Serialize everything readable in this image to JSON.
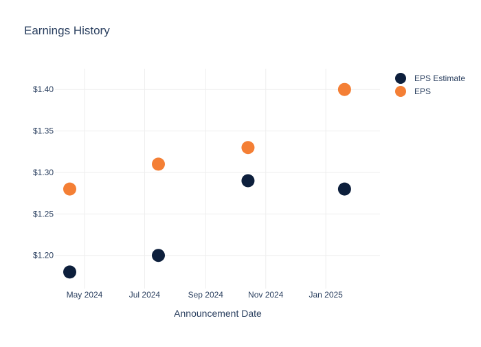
{
  "chart_data": {
    "type": "scatter",
    "title": "Earnings History",
    "xlabel": "Announcement Date",
    "ylabel": "",
    "x_tick_labels": [
      {
        "date": "2024-05-01",
        "label": "May 2024"
      },
      {
        "date": "2024-07-01",
        "label": "Jul 2024"
      },
      {
        "date": "2024-09-01",
        "label": "Sep 2024"
      },
      {
        "date": "2024-11-01",
        "label": "Nov 2024"
      },
      {
        "date": "2025-01-01",
        "label": "Jan 2025"
      }
    ],
    "y_ticks": [
      1.2,
      1.25,
      1.3,
      1.35,
      1.4
    ],
    "y_tick_labels": [
      "$1.20",
      "$1.25",
      "$1.30",
      "$1.35",
      "$1.40"
    ],
    "xlim": [
      "2024-04-01",
      "2025-02-25"
    ],
    "ylim": [
      1.16,
      1.425
    ],
    "grid": true,
    "legend_position": "top-right",
    "series": [
      {
        "name": "EPS Estimate",
        "color": "#0d1f3c",
        "points": [
          {
            "x": "2024-04-16",
            "y": 1.18
          },
          {
            "x": "2024-07-15",
            "y": 1.2
          },
          {
            "x": "2024-10-14",
            "y": 1.29
          },
          {
            "x": "2025-01-20",
            "y": 1.28
          }
        ]
      },
      {
        "name": "EPS",
        "color": "#f47f35",
        "points": [
          {
            "x": "2024-04-16",
            "y": 1.28
          },
          {
            "x": "2024-07-15",
            "y": 1.31
          },
          {
            "x": "2024-10-14",
            "y": 1.33
          },
          {
            "x": "2025-01-20",
            "y": 1.4
          }
        ]
      }
    ]
  },
  "colors": {
    "text": "#2a3f5f",
    "grid": "#eeeeee",
    "background": "#ffffff"
  }
}
